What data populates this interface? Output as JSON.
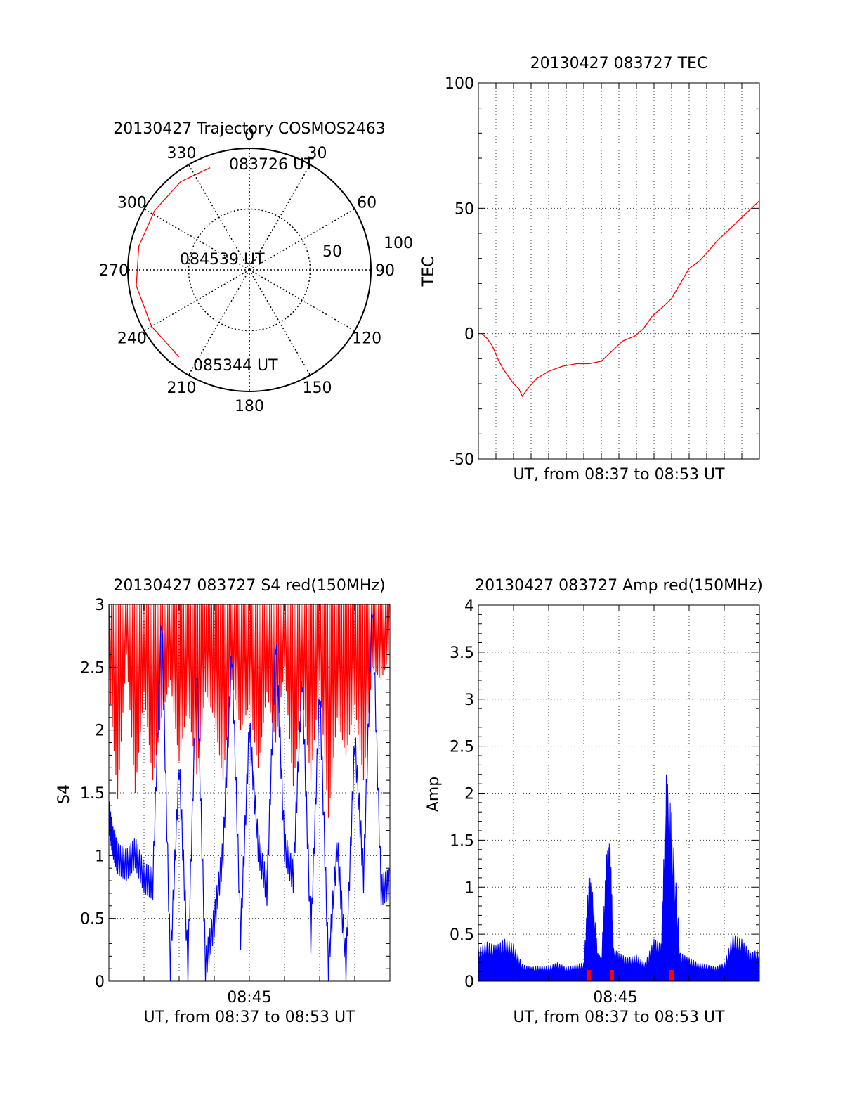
{
  "chart_data": [
    {
      "type": "polar",
      "title": "20130427 Trajectory COSMOS2463",
      "angle_labels": [
        "0",
        "30",
        "60",
        "90",
        "120",
        "150",
        "180",
        "210",
        "240",
        "270",
        "300",
        "330"
      ],
      "radial_labels": [
        "50",
        "100"
      ],
      "rlim": [
        0,
        100
      ],
      "grid": true,
      "series": [
        {
          "color": "#ff0000",
          "points": [
            {
              "azimuth": 339,
              "radius": 90
            },
            {
              "azimuth": 322,
              "radius": 92
            },
            {
              "azimuth": 302,
              "radius": 92
            },
            {
              "azimuth": 282,
              "radius": 93
            },
            {
              "azimuth": 262,
              "radius": 94
            },
            {
              "azimuth": 240,
              "radius": 93
            },
            {
              "azimuth": 219,
              "radius": 92
            }
          ]
        }
      ],
      "annotations": [
        {
          "text": "083726 UT",
          "azimuth": 339,
          "radius": 90
        },
        {
          "text": "084539 UT",
          "azimuth": 0,
          "radius": 0
        },
        {
          "text": "085344 UT",
          "azimuth": 219,
          "radius": 92
        }
      ]
    },
    {
      "type": "line",
      "title": "20130427 083727 TEC",
      "xlabel": "UT, from 08:37 to 08:53 UT",
      "ylabel": "TEC",
      "xlim": [
        0,
        16
      ],
      "ylim": [
        -50,
        100
      ],
      "yticks": [
        "-50",
        "0",
        "50",
        "100"
      ],
      "grid": true,
      "series": [
        {
          "color": "#ff0000",
          "x": [
            0.2,
            0.5,
            0.8,
            1.1,
            1.4,
            1.7,
            2.0,
            2.3,
            2.5,
            2.8,
            3.3,
            4.0,
            4.8,
            5.6,
            6.3,
            7.0,
            7.6,
            8.2,
            8.9,
            9.4,
            9.9,
            10.4,
            11.0,
            11.5,
            12.0,
            12.6,
            13.1,
            13.6,
            14.2,
            14.8,
            15.4,
            16.0
          ],
          "y": [
            0,
            -2,
            -5,
            -10,
            -14,
            -17,
            -20,
            -22,
            -25,
            -22,
            -18,
            -15,
            -13,
            -12,
            -12,
            -11,
            -7,
            -3,
            -1,
            2,
            7,
            10,
            14,
            20,
            26,
            29,
            33,
            37,
            41,
            45,
            49,
            53
          ]
        }
      ]
    },
    {
      "type": "line",
      "title": "20130427 083727 S4 red(150MHz)",
      "xlabel": "UT, from 08:37 to 08:53 UT",
      "ylabel": "S4",
      "xlim": [
        0,
        16
      ],
      "xticks": [
        {
          "value": 8,
          "label": "08:45"
        }
      ],
      "ylim": [
        0,
        3
      ],
      "yticks": [
        "0",
        "0.5",
        "1",
        "1.5",
        "2",
        "2.5",
        "3"
      ],
      "grid": true,
      "series": [
        {
          "color": "#ff0000",
          "x": [
            0.0,
            0.5,
            1.0,
            1.5,
            2.0,
            2.5,
            3.0,
            3.5,
            4.0,
            4.5,
            5.0,
            5.5,
            6.0,
            6.5,
            7.0,
            7.5,
            8.0,
            8.5,
            9.0,
            9.5,
            10.0,
            10.5,
            11.0,
            11.5,
            12.0,
            12.5,
            13.0,
            13.5,
            14.0,
            14.5,
            15.0,
            15.5,
            16.0
          ],
          "y": [
            2.4,
            1.45,
            2.6,
            1.5,
            2.3,
            1.6,
            2.1,
            2.4,
            1.75,
            2.2,
            1.65,
            2.3,
            2.1,
            1.6,
            2.4,
            2.0,
            2.2,
            1.7,
            2.3,
            1.9,
            2.5,
            1.55,
            2.3,
            1.6,
            2.4,
            1.3,
            2.1,
            1.8,
            2.2,
            1.6,
            2.5,
            2.4,
            2.6
          ]
        },
        {
          "color": "#0000ff",
          "x": [
            0.0,
            0.2,
            0.5,
            1.0,
            1.5,
            2.0,
            2.5,
            3.0,
            3.5,
            4.0,
            4.5,
            5.0,
            5.5,
            6.0,
            6.5,
            7.0,
            7.5,
            8.0,
            8.5,
            9.0,
            9.5,
            10.0,
            10.5,
            11.0,
            11.5,
            12.0,
            12.5,
            13.0,
            13.5,
            14.0,
            14.5,
            15.0,
            15.5,
            16.0
          ],
          "y": [
            1.2,
            1.0,
            0.85,
            0.8,
            0.9,
            0.7,
            0.65,
            2.8,
            0.0,
            1.6,
            0.0,
            2.4,
            0.0,
            0.35,
            0.9,
            2.5,
            0.25,
            1.9,
            0.95,
            0.6,
            2.6,
            0.95,
            0.7,
            2.3,
            0.22,
            2.2,
            0.0,
            0.95,
            0.0,
            1.8,
            0.7,
            2.9,
            0.6,
            0.65
          ]
        }
      ]
    },
    {
      "type": "bar",
      "title": "20130427 083727 Amp red(150MHz)",
      "xlabel": "UT, from 08:37 to 08:53 UT",
      "ylabel": "Amp",
      "xlim": [
        0,
        16
      ],
      "xticks": [
        {
          "value": 7.8,
          "label": "08:45"
        }
      ],
      "ylim": [
        0,
        4
      ],
      "yticks": [
        "0",
        "0.5",
        "1",
        "1.5",
        "2",
        "2.5",
        "3",
        "3.5",
        "4"
      ],
      "grid": true,
      "series": [
        {
          "color": "#0000ff",
          "x": [
            0.0,
            0.5,
            1.0,
            1.5,
            2.0,
            2.5,
            3.0,
            3.5,
            4.0,
            4.5,
            5.0,
            5.5,
            6.0,
            6.3,
            6.5,
            6.8,
            7.0,
            7.3,
            7.5,
            7.7,
            8.0,
            8.5,
            9.0,
            9.5,
            10.0,
            10.4,
            10.7,
            11.0,
            11.5,
            12.0,
            12.5,
            13.0,
            13.5,
            14.0,
            14.5,
            15.0,
            15.5,
            16.0
          ],
          "y": [
            0.35,
            0.42,
            0.38,
            0.45,
            0.4,
            0.18,
            0.15,
            0.17,
            0.16,
            0.2,
            0.15,
            0.18,
            0.2,
            1.15,
            0.95,
            0.3,
            0.25,
            1.35,
            1.5,
            0.35,
            0.3,
            0.25,
            0.28,
            0.2,
            0.45,
            0.4,
            2.2,
            1.8,
            0.3,
            0.25,
            0.2,
            0.18,
            0.15,
            0.2,
            0.5,
            0.45,
            0.3,
            0.35
          ]
        },
        {
          "color": "#ff0000",
          "x": [
            6.3,
            7.6,
            11.0
          ],
          "y": [
            0.12,
            0.12,
            0.12
          ]
        }
      ]
    }
  ]
}
